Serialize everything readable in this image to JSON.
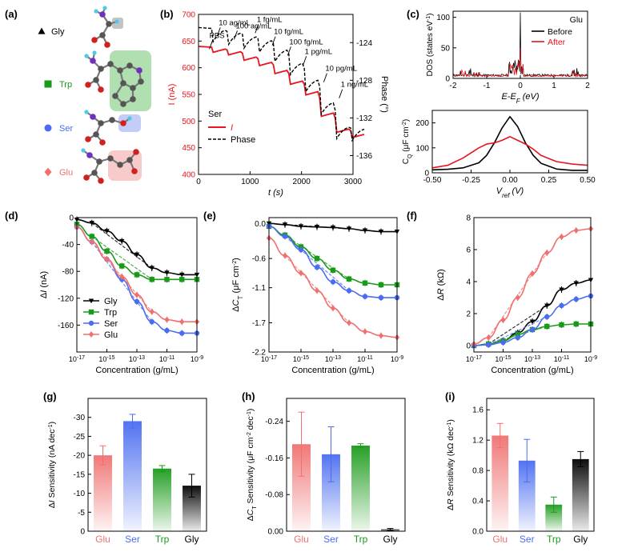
{
  "panel_labels": [
    "(a)",
    "(b)",
    "(c)",
    "(d)",
    "(e)",
    "(f)",
    "(g)",
    "(h)",
    "(i)"
  ],
  "molecules": [
    {
      "name": "Gly",
      "color": "#000000",
      "marker": "triangle"
    },
    {
      "name": "Trp",
      "color": "#1a9a1a",
      "marker": "square"
    },
    {
      "name": "Ser",
      "color": "#4a6cf0",
      "marker": "circle"
    },
    {
      "name": "Glu",
      "color": "#f07070",
      "marker": "diamond"
    }
  ],
  "chart_data": [
    {
      "id": "b",
      "type": "line",
      "xlabel": "t (s)",
      "ylabel": "I (nA)",
      "y2label": "Phase (°)",
      "xlim": [
        0,
        3000
      ],
      "ylim": [
        400,
        700
      ],
      "y2lim": [
        -138,
        -121
      ],
      "xticks": [
        0,
        1000,
        2000,
        3000
      ],
      "yticks": [
        400,
        450,
        500,
        550,
        600,
        650,
        700
      ],
      "y2ticks": [
        -124,
        -128,
        -132,
        -136
      ],
      "legend_title": "Ser",
      "series": [
        {
          "name": "I",
          "color": "#e8141e",
          "dash": false,
          "x": [
            0,
            300,
            600,
            900,
            1200,
            1500,
            1800,
            2100,
            2400,
            2700,
            3000
          ],
          "y": [
            640,
            635,
            630,
            620,
            610,
            595,
            575,
            555,
            515,
            485,
            475
          ]
        },
        {
          "name": "Phase",
          "color": "#000000",
          "dash": true,
          "x": [
            0,
            300,
            600,
            900,
            1200,
            1500,
            1800,
            2100,
            2400,
            2700,
            3000
          ],
          "y": [
            -122.4,
            -122.7,
            -123.0,
            -123.4,
            -123.8,
            -124.8,
            -126.2,
            -128.0,
            -130.4,
            -133.0,
            -133.2
          ]
        }
      ],
      "annotations": [
        "PBS",
        "10 ag/mL",
        "100 ag/mL",
        "1 fg/mL",
        "10 fg/mL",
        "100 fg/mL",
        "1 pg/mL",
        "10 pg/mL",
        "1 ng/mL"
      ]
    },
    {
      "id": "c_top",
      "type": "line",
      "xlabel": "E-E_F (eV)",
      "ylabel": "DOS (states eV⁻¹)",
      "xlim": [
        -2,
        2
      ],
      "ylim": [
        0,
        110
      ],
      "xticks": [
        -2,
        -1,
        0,
        1,
        2
      ],
      "yticks": [
        0,
        50,
        100
      ],
      "legend_title": "Glu",
      "series": [
        {
          "name": "Before",
          "color": "#000000"
        },
        {
          "name": "After",
          "color": "#e8141e"
        }
      ]
    },
    {
      "id": "c_bottom",
      "type": "line",
      "xlabel": "V_ref (V)",
      "ylabel": "C_Q (μF cm⁻²)",
      "xlim": [
        -0.5,
        0.5
      ],
      "ylim": [
        0,
        250
      ],
      "xticks": [
        -0.5,
        -0.25,
        0,
        0.25,
        0.5
      ],
      "xtick_labels": [
        "-0.50",
        "-0.25",
        "0.00",
        "0.25",
        "0.50"
      ],
      "yticks": [
        0,
        100,
        200
      ],
      "series": [
        {
          "name": "Before",
          "color": "#000000",
          "x": [
            -0.5,
            -0.4,
            -0.3,
            -0.2,
            -0.15,
            -0.1,
            -0.05,
            0,
            0.05,
            0.1,
            0.15,
            0.2,
            0.3,
            0.4,
            0.5
          ],
          "y": [
            12,
            14,
            20,
            40,
            70,
            120,
            180,
            225,
            185,
            120,
            70,
            38,
            15,
            10,
            10
          ]
        },
        {
          "name": "After",
          "color": "#e8141e",
          "x": [
            -0.5,
            -0.4,
            -0.3,
            -0.2,
            -0.15,
            -0.1,
            -0.05,
            0,
            0.05,
            0.1,
            0.15,
            0.2,
            0.3,
            0.4,
            0.5
          ],
          "y": [
            20,
            30,
            60,
            100,
            115,
            120,
            130,
            145,
            130,
            115,
            95,
            70,
            45,
            35,
            30
          ]
        }
      ]
    },
    {
      "id": "d",
      "type": "scatter",
      "xlabel": "Concentration (g/mL)",
      "ylabel": "ΔI (nA)",
      "xlim": [
        -17,
        -9
      ],
      "ylim": [
        -200,
        0
      ],
      "xtick_exp": [
        -17,
        -15,
        -13,
        -11,
        -9
      ],
      "yticks": [
        0,
        -40,
        -80,
        -120,
        -160
      ],
      "x": [
        -17,
        -16,
        -15,
        -14,
        -13,
        -12,
        -11,
        -10,
        -9
      ],
      "series": [
        {
          "name": "Gly",
          "values": [
            -3,
            -8,
            -20,
            -35,
            -55,
            -75,
            -82,
            -85,
            -85
          ]
        },
        {
          "name": "Trp",
          "values": [
            -10,
            -28,
            -50,
            -72,
            -85,
            -92,
            -92,
            -92,
            -92
          ]
        },
        {
          "name": "Ser",
          "values": [
            -14,
            -36,
            -62,
            -92,
            -125,
            -155,
            -168,
            -172,
            -172
          ]
        },
        {
          "name": "Glu",
          "values": [
            -14,
            -36,
            -62,
            -88,
            -115,
            -140,
            -152,
            -155,
            -155
          ]
        }
      ]
    },
    {
      "id": "e",
      "type": "scatter",
      "xlabel": "Concentration (g/mL)",
      "ylabel": "ΔC_T (μF cm⁻²)",
      "xlim": [
        -17,
        -9
      ],
      "ylim": [
        -2.2,
        0.1
      ],
      "xtick_exp": [
        -17,
        -15,
        -13,
        -11,
        -9
      ],
      "yticks": [
        0.0,
        -0.6,
        -1.1,
        -1.7,
        -2.2
      ],
      "ytick_labels": [
        "0.0",
        "-0.6",
        "-1.1",
        "-1.7",
        "-2.2"
      ],
      "x": [
        -17,
        -16,
        -15,
        -14,
        -13,
        -12,
        -11,
        -10,
        -9
      ],
      "series": [
        {
          "name": "Gly",
          "values": [
            0.0,
            -0.02,
            -0.05,
            -0.06,
            -0.07,
            -0.09,
            -0.12,
            -0.14,
            -0.14
          ]
        },
        {
          "name": "Trp",
          "values": [
            -0.05,
            -0.2,
            -0.4,
            -0.6,
            -0.8,
            -0.95,
            -1.02,
            -1.05,
            -1.05
          ]
        },
        {
          "name": "Ser",
          "values": [
            -0.05,
            -0.22,
            -0.45,
            -0.75,
            -1.0,
            -1.15,
            -1.25,
            -1.27,
            -1.27
          ]
        },
        {
          "name": "Glu",
          "values": [
            -0.25,
            -0.55,
            -0.85,
            -1.15,
            -1.45,
            -1.7,
            -1.85,
            -1.92,
            -1.95
          ]
        }
      ]
    },
    {
      "id": "f",
      "type": "scatter",
      "xlabel": "Concentration (g/mL)",
      "ylabel": "ΔR (kΩ)",
      "xlim": [
        -17,
        -9
      ],
      "ylim": [
        -0.4,
        8
      ],
      "xtick_exp": [
        -17,
        -15,
        -13,
        -11,
        -9
      ],
      "yticks": [
        0,
        2,
        4,
        6,
        8
      ],
      "x": [
        -17,
        -16,
        -15,
        -14,
        -13,
        -12,
        -11,
        -10,
        -9
      ],
      "series": [
        {
          "name": "Gly",
          "values": [
            0.0,
            0.1,
            0.3,
            0.8,
            1.5,
            2.5,
            3.5,
            3.9,
            4.1
          ]
        },
        {
          "name": "Trp",
          "values": [
            0.0,
            0.1,
            0.3,
            0.7,
            1.0,
            1.2,
            1.3,
            1.35,
            1.35
          ]
        },
        {
          "name": "Ser",
          "values": [
            0.0,
            0.05,
            0.2,
            0.5,
            1.0,
            1.8,
            2.5,
            2.9,
            3.1
          ]
        },
        {
          "name": "Glu",
          "values": [
            0.1,
            0.5,
            1.6,
            3.0,
            4.5,
            5.8,
            6.8,
            7.2,
            7.3
          ]
        }
      ]
    },
    {
      "id": "g",
      "type": "bar",
      "ylabel": "ΔI Sensitivity (nA dec⁻¹)",
      "categories": [
        "Glu",
        "Ser",
        "Trp",
        "Gly"
      ],
      "values": [
        -20,
        -29,
        -16.5,
        -12
      ],
      "errors": [
        2.5,
        1.8,
        0.8,
        3
      ],
      "ylim": [
        0,
        -35
      ],
      "yticks": [
        0,
        -5,
        -10,
        -15,
        -20,
        -25,
        -30
      ]
    },
    {
      "id": "h",
      "type": "bar",
      "ylabel": "ΔC_T Sensitivity (μF cm⁻² dec⁻¹)",
      "categories": [
        "Glu",
        "Ser",
        "Trp",
        "Gly"
      ],
      "values": [
        -0.19,
        -0.168,
        -0.187,
        -0.004
      ],
      "errors": [
        0.07,
        0.06,
        0.004,
        0.002
      ],
      "ylim": [
        0,
        -0.29
      ],
      "yticks": [
        0.0,
        -0.08,
        -0.16,
        -0.24
      ],
      "ytick_labels": [
        "0.00",
        "-0.08",
        "-0.16",
        "-0.24"
      ]
    },
    {
      "id": "i",
      "type": "bar",
      "ylabel": "ΔR Sensitivity (kΩ dec⁻¹)",
      "categories": [
        "Glu",
        "Ser",
        "Trp",
        "Gly"
      ],
      "values": [
        1.26,
        0.93,
        0.35,
        0.95
      ],
      "errors": [
        0.16,
        0.28,
        0.1,
        0.1
      ],
      "ylim": [
        0,
        1.75
      ],
      "yticks": [
        0.0,
        0.4,
        0.8,
        1.2,
        1.6
      ],
      "ytick_labels": [
        "0.0",
        "0.4",
        "0.8",
        "1.2",
        "1.6"
      ]
    }
  ]
}
